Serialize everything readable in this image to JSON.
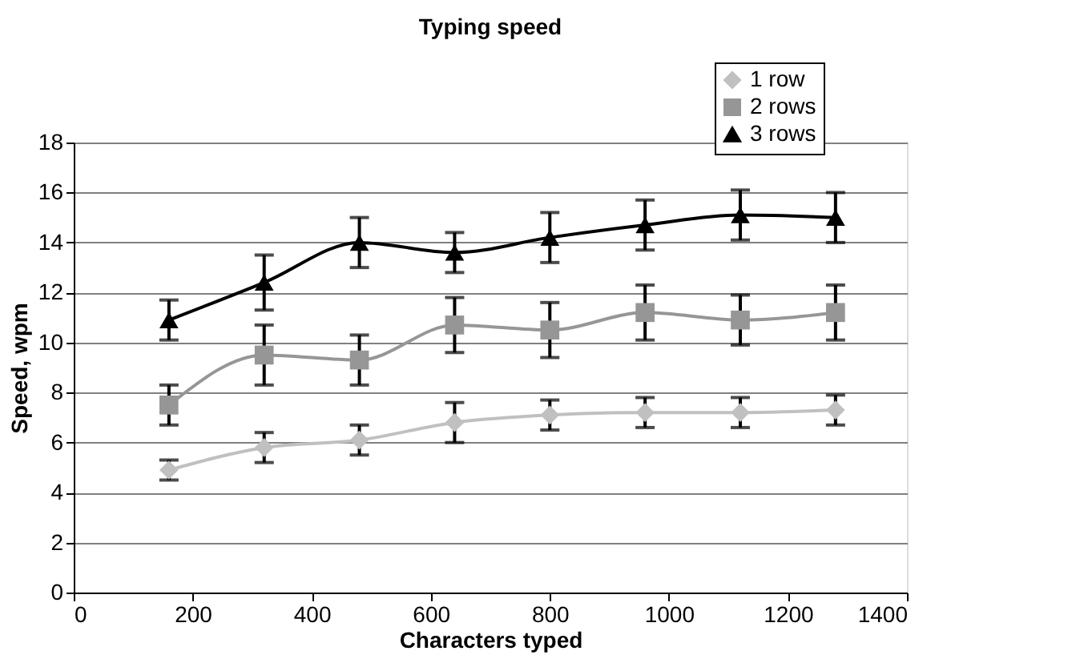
{
  "chart_data": {
    "type": "line",
    "title": "Typing speed",
    "xlabel": "Characters typed",
    "ylabel": "Speed, wpm",
    "x": [
      160,
      320,
      480,
      640,
      800,
      960,
      1120,
      1280
    ],
    "series": [
      {
        "name": "1 row",
        "color": "#c0c0c0",
        "marker": "diamond",
        "values": [
          4.9,
          5.8,
          6.1,
          6.8,
          7.1,
          7.2,
          7.2,
          7.3
        ],
        "errors": [
          0.4,
          0.6,
          0.6,
          0.8,
          0.6,
          0.6,
          0.6,
          0.6
        ]
      },
      {
        "name": "2 rows",
        "color": "#969696",
        "marker": "square",
        "values": [
          7.5,
          9.5,
          9.3,
          10.7,
          10.5,
          11.2,
          10.9,
          11.2
        ],
        "errors": [
          0.8,
          1.2,
          1.0,
          1.1,
          1.1,
          1.1,
          1.0,
          1.1
        ]
      },
      {
        "name": "3 rows",
        "color": "#000000",
        "marker": "triangle",
        "values": [
          10.9,
          12.4,
          14.0,
          13.6,
          14.2,
          14.7,
          15.1,
          15.0
        ],
        "errors": [
          0.8,
          1.1,
          1.0,
          0.8,
          1.0,
          1.0,
          1.0,
          1.0
        ]
      }
    ],
    "xlim": [
      0,
      1400
    ],
    "xticks": [
      0,
      200,
      400,
      600,
      800,
      1000,
      1200,
      1400
    ],
    "ylim": [
      0,
      18
    ],
    "yticks": [
      0,
      2,
      4,
      6,
      8,
      10,
      12,
      14,
      16,
      18
    ],
    "grid": "y",
    "legend": "top right",
    "line_style": "solid"
  }
}
